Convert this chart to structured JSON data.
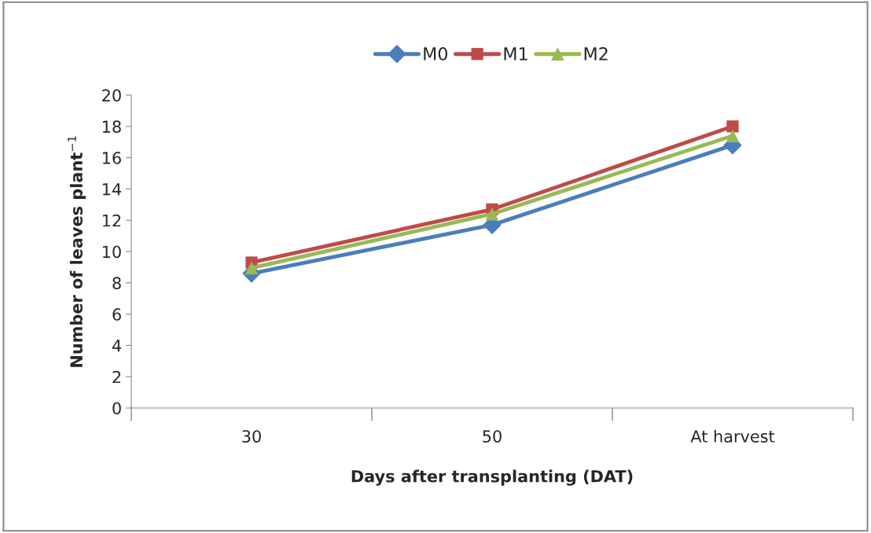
{
  "chart_data": {
    "type": "line",
    "xlabel": "Days after transplanting (DAT)",
    "ylabel": "Number of leaves plant$^{−1}$",
    "categories": [
      "30",
      "50",
      "At harvest"
    ],
    "series": [
      {
        "name": "M0",
        "color": "#4a7ebb",
        "values": [
          8.6,
          11.7,
          16.8
        ],
        "marker": "diamond"
      },
      {
        "name": "M1",
        "color": "#be4b48",
        "values": [
          9.3,
          12.7,
          18.0
        ],
        "marker": "square"
      },
      {
        "name": "M2",
        "color": "#98b954",
        "values": [
          8.95,
          12.4,
          17.4
        ],
        "marker": "triangle"
      }
    ],
    "ylim": [
      0,
      20
    ],
    "yticks": [
      0,
      2,
      4,
      6,
      8,
      10,
      12,
      14,
      16,
      18,
      20
    ],
    "grid": false,
    "legend": "top"
  }
}
